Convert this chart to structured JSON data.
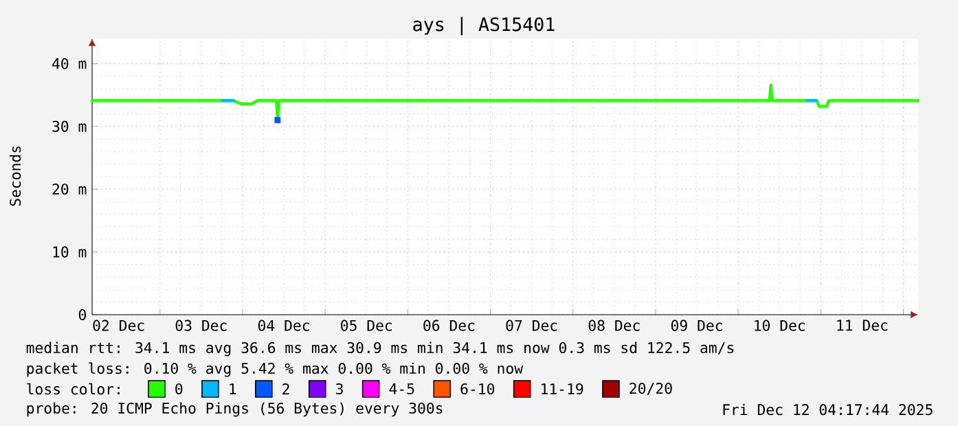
{
  "chart_data": {
    "type": "line",
    "title": "ays | AS15401",
    "ylabel": "Seconds",
    "legend_title": "loss color:",
    "x": [
      "2025-12-02T04:17",
      "2025-12-03T21:24",
      "2025-12-03T23:30",
      "2025-12-04T02:40",
      "2025-12-04T04:17",
      "2025-12-04T09:50",
      "2025-12-04T10:10",
      "2025-12-04T10:30",
      "2025-12-10T09:05",
      "2025-12-10T09:30",
      "2025-12-10T09:50",
      "2025-12-10T22:50",
      "2025-12-10T23:30",
      "2025-12-11T01:40",
      "2025-12-11T02:20",
      "2025-12-12T04:17"
    ],
    "series": [
      {
        "name": "0",
        "color": "#26ff00",
        "values": [
          34.1,
          34.1,
          33.6,
          33.6,
          34.1,
          34.1,
          31.0,
          34.1,
          34.1,
          36.6,
          34.1,
          34.1,
          33.2,
          33.2,
          34.1,
          34.1
        ]
      },
      {
        "name": "1",
        "color": "#00b8ff",
        "x": [
          "2025-12-03T18:00",
          "2025-12-03T21:24",
          null,
          "2025-12-10T20:00",
          "2025-12-10T22:50"
        ],
        "values": [
          34.1,
          34.1,
          null,
          34.1,
          34.1
        ]
      },
      {
        "name": "2",
        "color": "#0059ff",
        "type": "scatter",
        "marker": "square",
        "x": [
          "2025-12-04T10:10"
        ],
        "values": [
          31.0
        ]
      },
      {
        "name": "3",
        "color": "#7e00ff",
        "x": [
          null
        ],
        "values": [
          null
        ]
      },
      {
        "name": "4-5",
        "color": "#ff00ff",
        "x": [
          null
        ],
        "values": [
          null
        ]
      },
      {
        "name": "6-10",
        "color": "#ff5500",
        "x": [
          null
        ],
        "values": [
          null
        ]
      },
      {
        "name": "11-19",
        "color": "#ff0000",
        "x": [
          null
        ],
        "values": [
          null
        ]
      },
      {
        "name": "20/20",
        "color": "#a10000",
        "x": [
          null
        ],
        "values": [
          null
        ]
      }
    ],
    "xlim": [
      "2025-12-02T04:17",
      "2025-12-12T04:17"
    ],
    "xticks": [
      {
        "value": "2025-12-02T12:00",
        "label": "02 Dec"
      },
      {
        "value": "2025-12-03T12:00",
        "label": "03 Dec"
      },
      {
        "value": "2025-12-04T12:00",
        "label": "04 Dec"
      },
      {
        "value": "2025-12-05T12:00",
        "label": "05 Dec"
      },
      {
        "value": "2025-12-06T12:00",
        "label": "06 Dec"
      },
      {
        "value": "2025-12-07T12:00",
        "label": "07 Dec"
      },
      {
        "value": "2025-12-08T12:00",
        "label": "08 Dec"
      },
      {
        "value": "2025-12-09T12:00",
        "label": "09 Dec"
      },
      {
        "value": "2025-12-10T12:00",
        "label": "10 Dec"
      },
      {
        "value": "2025-12-11T12:00",
        "label": "11 Dec"
      },
      {
        "value": "2025-12-03T00:00",
        "label": null
      },
      {
        "value": "2025-12-04T00:00",
        "label": null
      },
      {
        "value": "2025-12-05T00:00",
        "label": null
      },
      {
        "value": "2025-12-06T00:00",
        "label": null
      },
      {
        "value": "2025-12-07T00:00",
        "label": null
      },
      {
        "value": "2025-12-08T00:00",
        "label": null
      },
      {
        "value": "2025-12-09T00:00",
        "label": null
      },
      {
        "value": "2025-12-10T00:00",
        "label": null
      },
      {
        "value": "2025-12-11T00:00",
        "label": null
      },
      {
        "value": "2025-12-12T00:00",
        "label": null
      }
    ],
    "ylim": [
      0,
      44
    ],
    "yticks": [
      0,
      {
        "value": 10,
        "label": "10 m"
      },
      {
        "value": 20,
        "label": "20 m"
      },
      {
        "value": 30,
        "label": "30 m"
      },
      {
        "value": 40,
        "label": "40 m"
      }
    ],
    "grid": true,
    "legend": "bottom",
    "line_style": "solid",
    "annotations": [
      "median rtt:  34.1 ms avg   36.6 ms max   30.9 ms min   34.1 ms now   0.3 ms sd   122.5   am/s",
      "packet loss: 0.10 % avg   5.42 % max   0.00 % min   0.00 % now",
      "probe:       20 ICMP Echo Pings (56 Bytes) every 300s",
      "Fri Dec 12 04:17:44 2025"
    ]
  }
}
